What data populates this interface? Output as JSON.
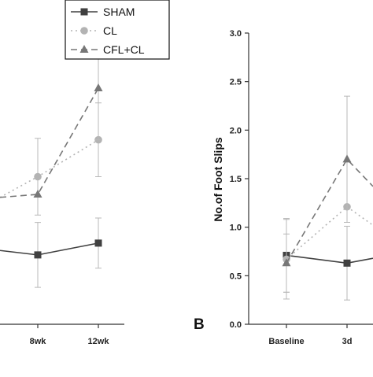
{
  "chart_data": [
    {
      "type": "line",
      "panel_label": "",
      "categories": [
        "8wk",
        "12wk"
      ],
      "title": "",
      "xlabel": "",
      "ylabel": "",
      "legend": {
        "placement": "top",
        "entries": [
          "SHAM",
          "CL",
          "CFL+CL"
        ]
      },
      "series": [
        {
          "name": "SHAM",
          "values": [
            0.47,
            0.55
          ],
          "err": [
            0.22,
            0.17
          ],
          "color": "#404040",
          "marker": "square",
          "dash": "solid"
        },
        {
          "name": "CL",
          "values": [
            1.0,
            1.25
          ],
          "err": [
            0.26,
            0.25
          ],
          "color": "#b3b3b3",
          "marker": "circle",
          "dash": "dotted"
        },
        {
          "name": "CFL+CL",
          "values": [
            0.88,
            1.6
          ],
          "err": [
            0.0,
            0.35
          ],
          "color": "#777777",
          "marker": "triangle",
          "dash": "dashed"
        }
      ],
      "partial_left": {
        "SHAM": 0.5,
        "CL": 0.86,
        "CFL+CL": 0.86
      }
    },
    {
      "type": "line",
      "panel_label": "B",
      "categories": [
        "Baseline",
        "3d"
      ],
      "title": "",
      "xlabel": "",
      "ylabel": "No.of Foot Slips",
      "ylim": [
        0,
        3.0
      ],
      "yticks": [
        "0.0",
        "0.5",
        "1.0",
        "1.5",
        "2.0",
        "2.5",
        "3.0"
      ],
      "series": [
        {
          "name": "SHAM",
          "values": [
            0.71,
            0.63
          ],
          "err": [
            0.38,
            0.38
          ],
          "color": "#404040",
          "marker": "square",
          "dash": "solid"
        },
        {
          "name": "CL",
          "values": [
            0.67,
            1.21
          ],
          "err": [
            0.41,
            0.0
          ],
          "color": "#b3b3b3",
          "marker": "circle",
          "dash": "dotted"
        },
        {
          "name": "CFL+CL",
          "values": [
            0.63,
            1.7
          ],
          "err": [
            0.3,
            0.65
          ],
          "color": "#777777",
          "marker": "triangle",
          "dash": "dashed"
        }
      ],
      "partial_right": {
        "SHAM": 0.68,
        "CL": 1.02,
        "CFL+CL": 1.42
      }
    }
  ]
}
